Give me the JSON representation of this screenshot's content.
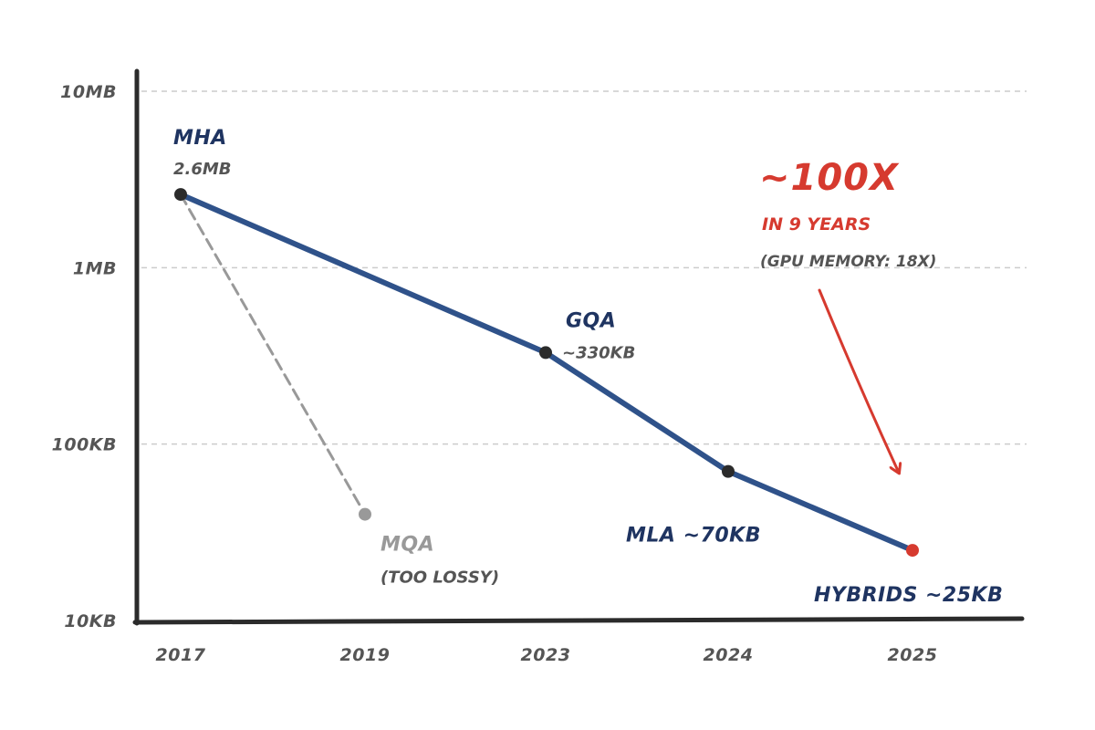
{
  "colors": {
    "main_line": "#2f528a",
    "label_dark": "#1f3461",
    "mqa_gray": "#999999",
    "accent_red": "#d63a2f",
    "axis": "#2b2b2b",
    "grid": "#cccccc",
    "dot": "#2b2b2b"
  },
  "chart_data": {
    "type": "line",
    "categories": [
      "2017",
      "2019",
      "2023",
      "2024",
      "2025"
    ],
    "yscale": "log",
    "ylim": [
      10,
      10000
    ],
    "y_unit": "KB",
    "ytick_values": [
      10,
      100,
      1000,
      10000
    ],
    "ytick_labels": [
      "10KB",
      "100KB",
      "1MB",
      "10MB"
    ],
    "grid": "horizontal dashed",
    "series": [
      {
        "kind": "main",
        "points": [
          {
            "x": "2017",
            "y": 2600,
            "name": "MHA",
            "sub": "2.6MB"
          },
          {
            "x": "2023",
            "y": 330,
            "name": "GQA",
            "sub": "~330KB"
          },
          {
            "x": "2024",
            "y": 70,
            "name": "MLA ~70KB",
            "sub": ""
          },
          {
            "x": "2025",
            "y": 25,
            "name": "HYBRIDS ~25KB",
            "sub": ""
          }
        ]
      },
      {
        "kind": "mqa",
        "points": [
          {
            "x": "2017",
            "y": 2600
          },
          {
            "x": "2019",
            "y": 40,
            "name": "MQA",
            "sub": "(TOO LOSSY)"
          }
        ]
      }
    ],
    "annotation": {
      "headline": "~100X",
      "line2": "IN 9 YEARS",
      "line3": "(GPU MEMORY: 18X)"
    }
  }
}
